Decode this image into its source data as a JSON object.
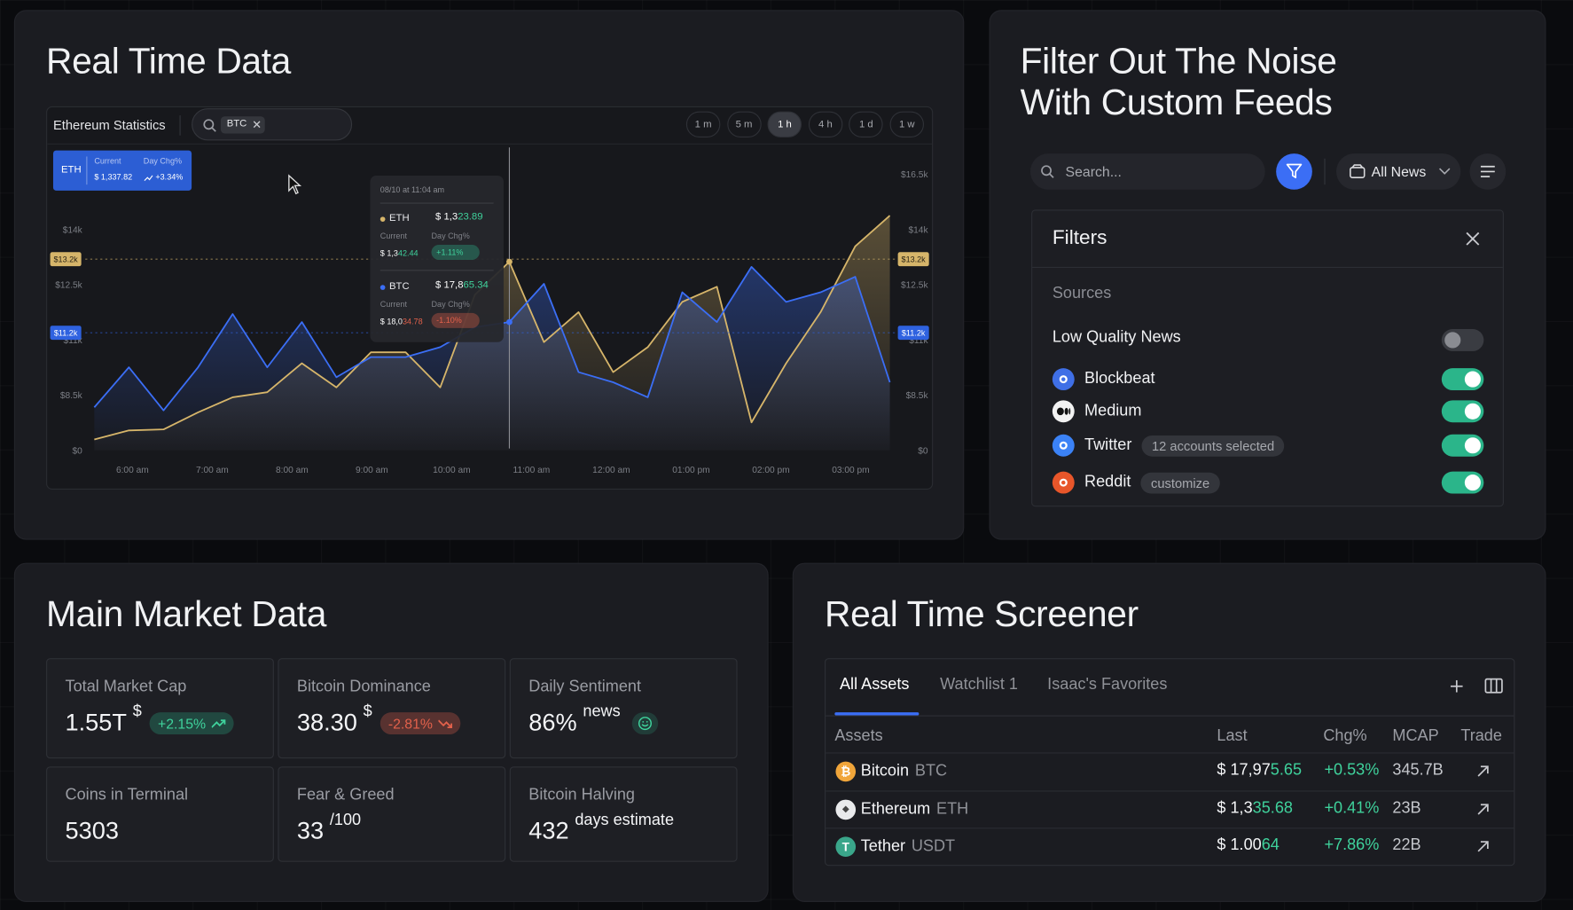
{
  "real_time_data": {
    "title": "Real Time Data",
    "chart_label": "Ethereum Statistics",
    "search_tag": "BTC",
    "timeframes": [
      "1 m",
      "5 m",
      "1 h",
      "4 h",
      "1 d",
      "1 w"
    ],
    "active_timeframe": 2,
    "badge": {
      "current_label": "Current",
      "change_label": "Day Chg%",
      "current": "$ 1,337.82",
      "change": "+3.34%"
    },
    "tooltip": {
      "time": "08/10 at 11:04 am",
      "rows": [
        {
          "price_main": "$ 1,3",
          "price_tick": "23.89",
          "current_label": "Current",
          "change_label": "Day Chg%",
          "current_main": "$ 1,3",
          "current_tick": "42.44",
          "change": "+1.11%",
          "trend": "up"
        },
        {
          "price_main": "$ 17,8",
          "price_tick": "65.34",
          "current_label": "Current",
          "change_label": "Day Chg%",
          "current_main": "$ 18,0",
          "current_tick": "34.78",
          "change": "-1.10%",
          "trend": "down"
        }
      ]
    },
    "chart_data": {
      "type": "line",
      "x_labels": [
        "6:00 am",
        "7:00 am",
        "8:00 am",
        "9:00 am",
        "10:00 am",
        "11:00 am",
        "12:00 am",
        "01:00 pm",
        "02:00 pm",
        "03:00 pm"
      ],
      "ylim": [
        0,
        16500
      ],
      "yticks": [
        {
          "value": 0,
          "label": "$0"
        },
        {
          "value": 8500,
          "label": "$8.5k"
        },
        {
          "value": 11000,
          "label": "$11k"
        },
        {
          "value": 12500,
          "label": "$12.5k"
        },
        {
          "value": 14000,
          "label": "$14k"
        },
        {
          "value": 16500,
          "label": "$16.5k"
        }
      ],
      "grid": false,
      "crosshair_index": 12,
      "series": [
        {
          "name": "ETH",
          "color": "#d6b56a",
          "values": [
            1700,
            3090,
            3240,
            5870,
            8190,
            8640,
            9950,
            8860,
            10450,
            10450,
            8860,
            12230,
            13130,
            10910,
            11760,
            9550,
            10680,
            12040,
            12450,
            4330,
            9950,
            11760,
            13550,
            14640
          ]
        },
        {
          "name": "BTC",
          "color": "#3b6ef5",
          "values": [
            6650,
            9770,
            6180,
            9770,
            11710,
            9770,
            11490,
            9320,
            10230,
            10230,
            10680,
            11350,
            11490,
            12530,
            9550,
            9090,
            8190,
            12300,
            11490,
            12990,
            12040,
            12300,
            12720,
            9090
          ]
        }
      ],
      "markers": [
        {
          "value": 13200,
          "label": "$13.2k",
          "color": "#d6b56a"
        },
        {
          "value": 11200,
          "label": "$11.2k",
          "color": "#2f62e0"
        }
      ]
    }
  },
  "feeds": {
    "title_lines": [
      "Filter Out The Noise",
      "With Custom Feeds"
    ],
    "search_placeholder": "Search...",
    "news_select": "All News",
    "filters_title": "Filters",
    "sources_label": "Sources",
    "low_quality": {
      "label": "Low Quality News",
      "enabled": false
    },
    "sources": [
      {
        "name": "Blockbeat",
        "enabled": true,
        "icon_color": "#3f6fe6"
      },
      {
        "name": "Medium",
        "enabled": true,
        "icon_color": "#f2f2f2"
      },
      {
        "name": "Twitter",
        "tag": "12 accounts selected",
        "enabled": true,
        "icon_color": "#3b82f6"
      },
      {
        "name": "Reddit",
        "tag": "customize",
        "enabled": true,
        "icon_color": "#e8562a"
      }
    ]
  },
  "market": {
    "title": "Main Market Data",
    "cards": [
      {
        "label": "Total Market Cap",
        "value": "1.55T",
        "sup": "$",
        "badge": "+2.15%",
        "trend": "up"
      },
      {
        "label": "Bitcoin Dominance",
        "value": "38.30",
        "sup": "$",
        "badge": "-2.81%",
        "trend": "down"
      },
      {
        "label": "Daily Sentiment",
        "value": "86%",
        "sup": "news",
        "icon": "smile"
      },
      {
        "label": "Coins in Terminal",
        "value": "5303"
      },
      {
        "label": "Fear & Greed",
        "value": "33",
        "sup": "/100"
      },
      {
        "label": "Bitcoin Halving",
        "value": "432",
        "sup": "days estimate"
      }
    ]
  },
  "screener": {
    "title": "Real Time Screener",
    "tabs": [
      "All Assets",
      "Watchlist 1",
      "Isaac's Favorites"
    ],
    "active_tab": 0,
    "columns": [
      "Assets",
      "Last",
      "Chg%",
      "MCAP",
      "Trade"
    ],
    "rows": [
      {
        "icon": "₿",
        "icon_color": "#f0a53a",
        "name": "Bitcoin",
        "symbol": "BTC",
        "last_main": "$ 17,97",
        "last_tick": "5.65",
        "change": "+0.53%",
        "mcap": "345.7B"
      },
      {
        "icon": "◆",
        "icon_color": "#e9eaec",
        "name": "Ethereum",
        "symbol": "ETH",
        "last_main": "$ 1,3",
        "last_tick": "35.68",
        "change": "+0.41%",
        "mcap": "23B"
      },
      {
        "icon": "T",
        "icon_color": "#3aa68a",
        "name": "Tether",
        "symbol": "USDT",
        "last_main": "$ 1.00",
        "last_tick": "64",
        "change": "+7.86%",
        "mcap": "22B"
      }
    ]
  }
}
